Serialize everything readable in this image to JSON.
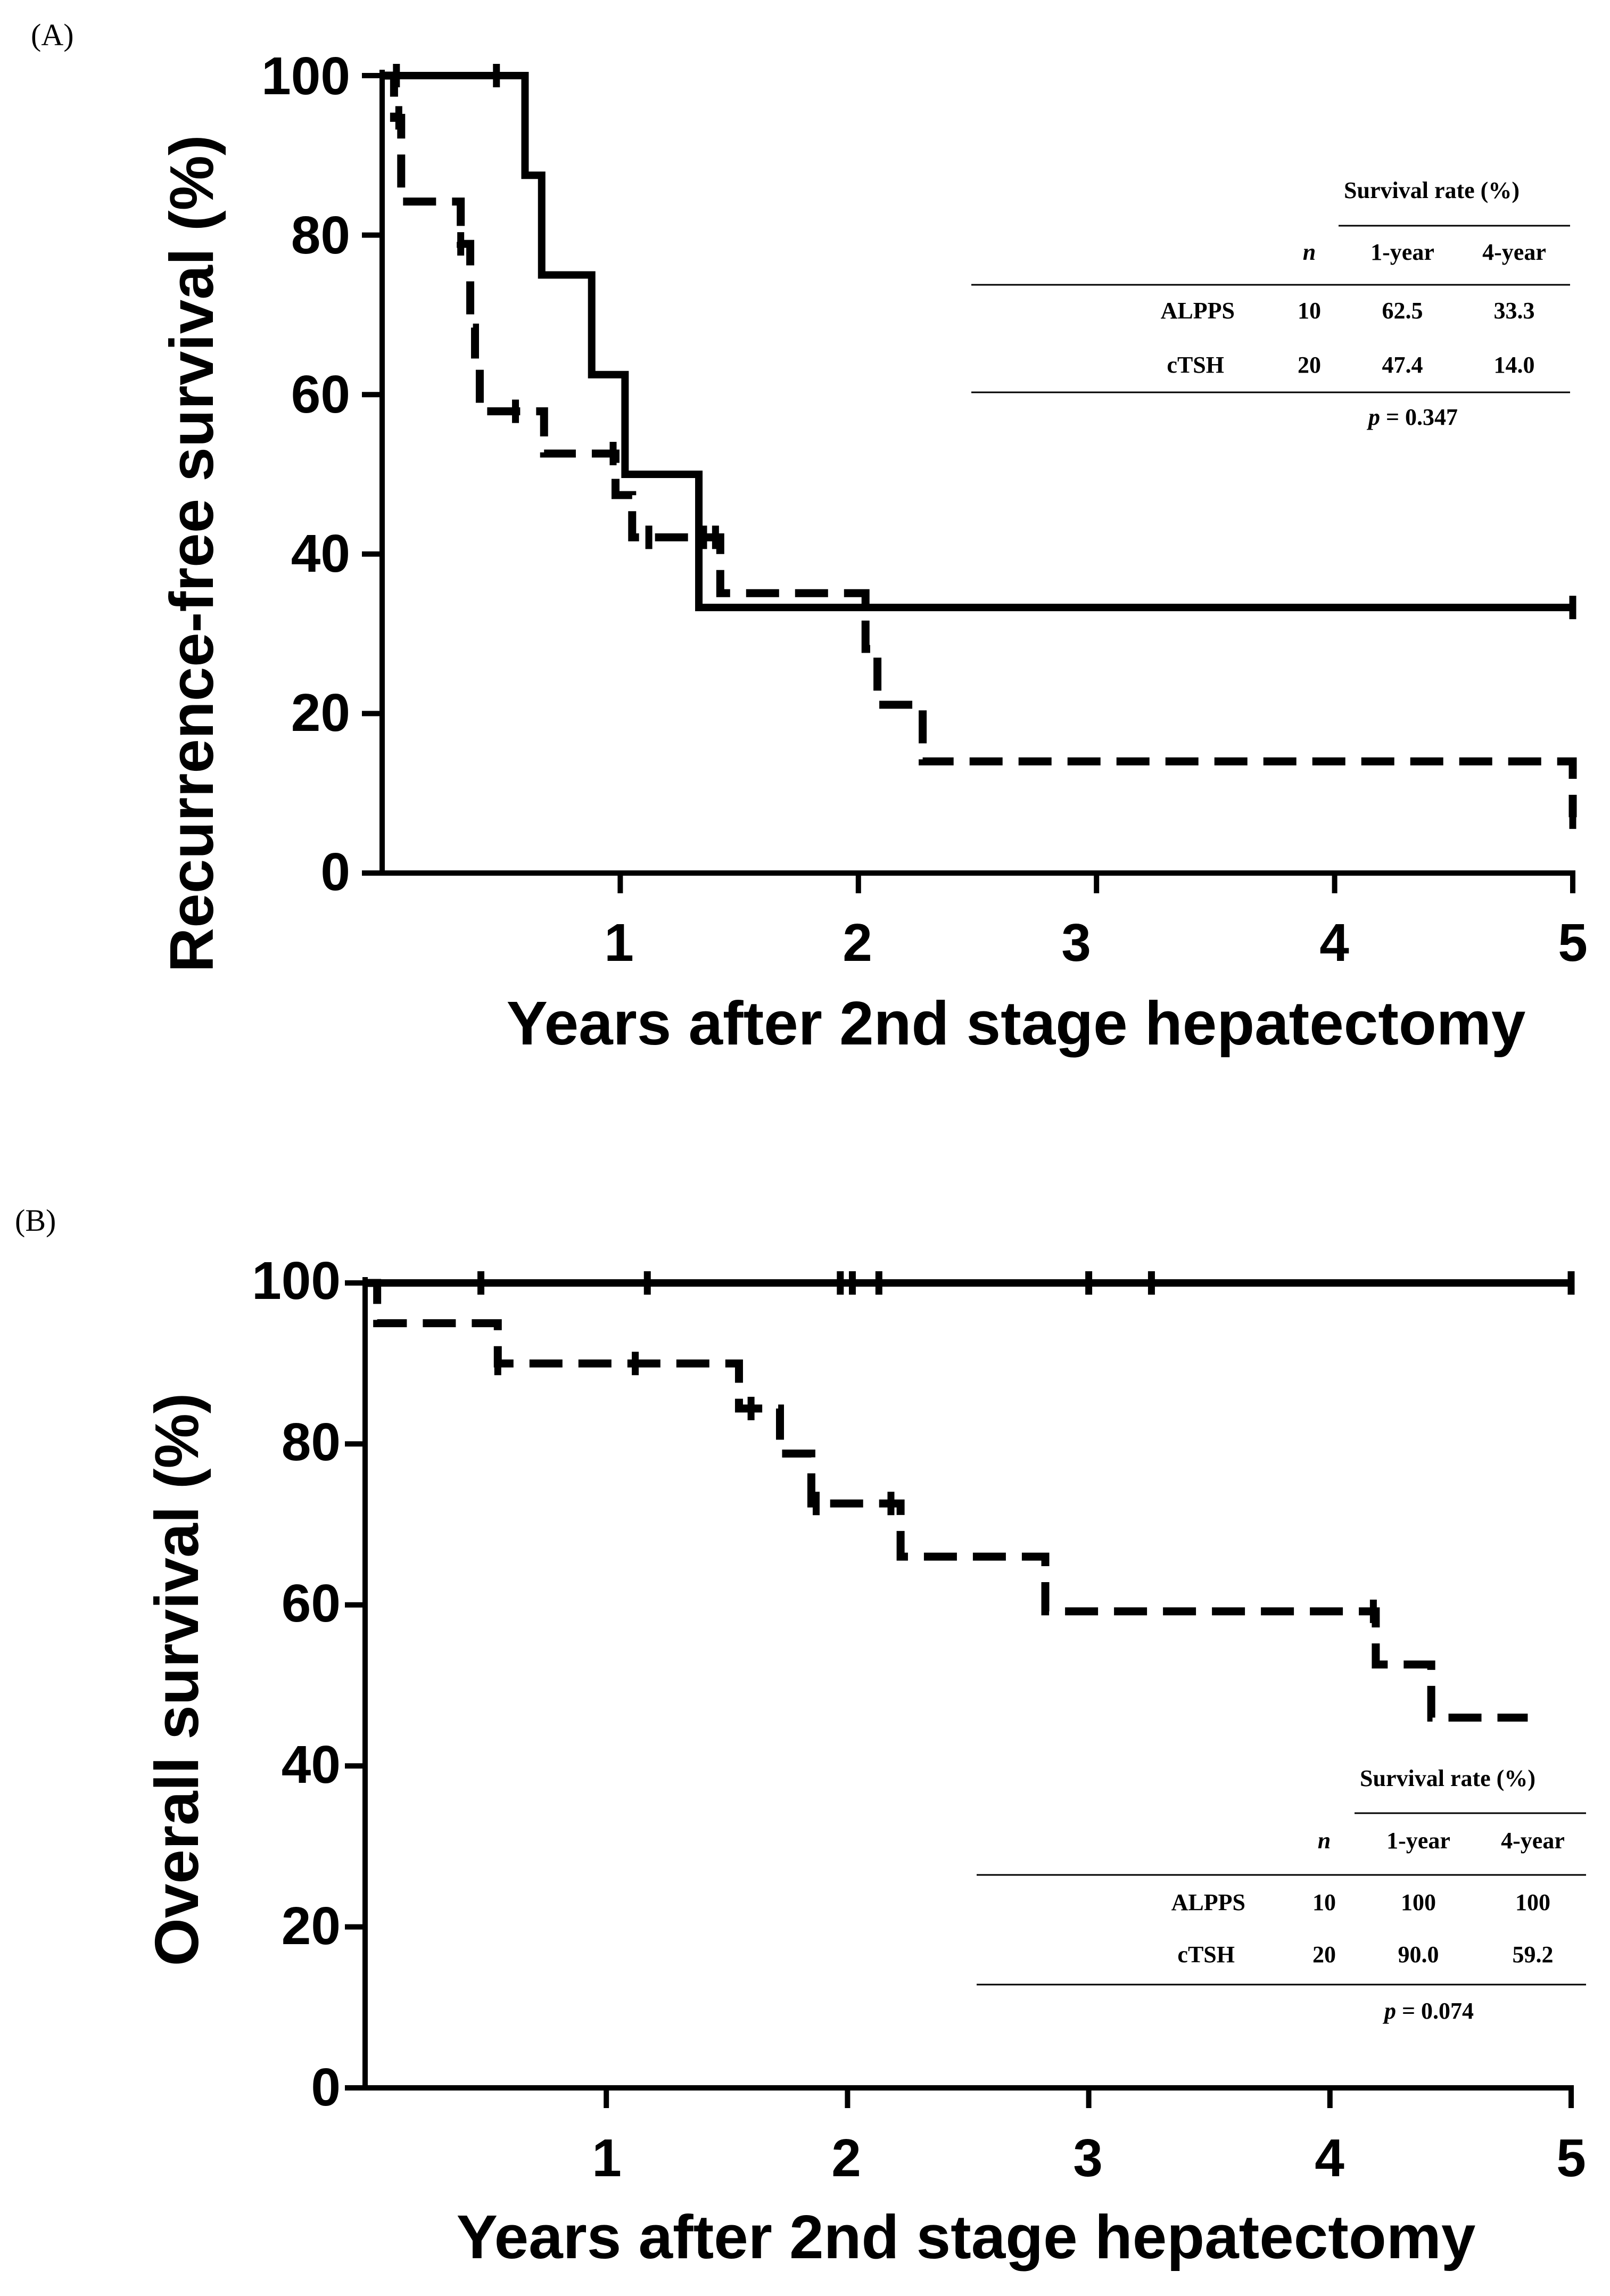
{
  "chart_data": [
    {
      "type": "line",
      "panel_label": "(A)",
      "xlabel": "Years after 2nd stage hepatectomy",
      "ylabel": "Recurrence-free survival (%)",
      "xlim": [
        0,
        5
      ],
      "ylim": [
        0,
        100
      ],
      "x_ticks": [
        "1",
        "2",
        "3",
        "4",
        "5"
      ],
      "y_ticks": [
        "0",
        "20",
        "40",
        "60",
        "80",
        "100"
      ],
      "series": [
        {
          "name": "ALPPS",
          "style": "solid",
          "steps": [
            [
              0,
              100
            ],
            [
              0.6,
              87.5
            ],
            [
              0.67,
              75
            ],
            [
              0.88,
              62.5
            ],
            [
              1.02,
              50
            ],
            [
              1.33,
              33.3
            ],
            [
              5,
              33.3
            ]
          ],
          "censor_x": [
            0.06,
            0.48,
            5.0
          ]
        },
        {
          "name": "cTSH",
          "style": "dashed",
          "steps": [
            [
              0,
              100
            ],
            [
              0.05,
              94.7
            ],
            [
              0.08,
              84.2
            ],
            [
              0.33,
              78.9
            ],
            [
              0.37,
              68.4
            ],
            [
              0.39,
              63.2
            ],
            [
              0.41,
              57.9
            ],
            [
              0.68,
              52.6
            ],
            [
              0.98,
              47.4
            ],
            [
              1.05,
              42.1
            ],
            [
              1.42,
              35.1
            ],
            [
              2.03,
              28.1
            ],
            [
              2.08,
              21.1
            ],
            [
              2.27,
              14.0
            ],
            [
              5,
              14.0
            ],
            [
              5.0,
              7.0
            ]
          ],
          "censor_x": [
            0.07,
            0.33,
            0.56,
            0.97,
            1.12,
            1.35,
            1.4,
            5.0
          ]
        }
      ],
      "table": {
        "group_header": "Survival rate (%)",
        "columns": [
          "n",
          "1-year",
          "4-year"
        ],
        "rows": [
          {
            "group": "ALPPS",
            "n": "10",
            "year1": "62.5",
            "year4": "33.3"
          },
          {
            "group": "cTSH",
            "n": "20",
            "year1": "47.4",
            "year4": "14.0"
          }
        ],
        "p_label": "p",
        "p_value": " = 0.347"
      }
    },
    {
      "type": "line",
      "panel_label": "(B)",
      "xlabel": "Years after 2nd stage hepatectomy",
      "ylabel": "Overall survival (%)",
      "xlim": [
        0,
        5
      ],
      "ylim": [
        0,
        100
      ],
      "x_ticks": [
        "1",
        "2",
        "3",
        "4",
        "5"
      ],
      "y_ticks": [
        "0",
        "20",
        "40",
        "60",
        "80",
        "100"
      ],
      "series": [
        {
          "name": "ALPPS",
          "style": "solid",
          "steps": [
            [
              0,
              100
            ],
            [
              5,
              100
            ]
          ],
          "censor_x": [
            0.48,
            1.17,
            1.97,
            2.02,
            2.13,
            3.0,
            3.26,
            5.0
          ]
        },
        {
          "name": "cTSH",
          "style": "dashed",
          "steps": [
            [
              0,
              100
            ],
            [
              0.05,
              95.0
            ],
            [
              0.55,
              90.0
            ],
            [
              1.55,
              84.4
            ],
            [
              1.72,
              78.8
            ],
            [
              1.85,
              72.6
            ],
            [
              2.22,
              66.0
            ],
            [
              2.82,
              59.2
            ],
            [
              4.19,
              52.6
            ],
            [
              4.42,
              46.0
            ],
            [
              4.82,
              46.0
            ]
          ],
          "censor_x": [
            0.55,
            1.12,
            1.6,
            1.87,
            2.18,
            4.18
          ]
        }
      ],
      "table": {
        "group_header": "Survival rate (%)",
        "columns": [
          "n",
          "1-year",
          "4-year"
        ],
        "rows": [
          {
            "group": "ALPPS",
            "n": "10",
            "year1": "100",
            "year4": "100"
          },
          {
            "group": "cTSH",
            "n": "20",
            "year1": "90.0",
            "year4": "59.2"
          }
        ],
        "p_label": "p",
        "p_value": " = 0.074"
      }
    }
  ]
}
